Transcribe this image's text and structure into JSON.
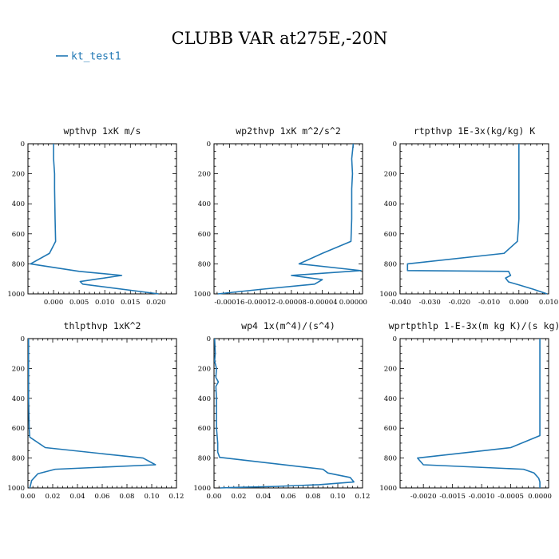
{
  "figure": {
    "title": "CLUBB VAR at275E,-20N",
    "legend": [
      {
        "label": "kt_test1",
        "color": "#1f77b4"
      }
    ]
  },
  "chart_data": [
    {
      "type": "line",
      "title": "wpthvp   1xK m/s",
      "xlim": [
        -0.005,
        0.024
      ],
      "ylim": [
        1000,
        0
      ],
      "xticks": [
        0.0,
        0.005,
        0.01,
        0.015,
        0.02
      ],
      "xtick_labels": [
        "0.000",
        "0.005",
        "0.010",
        "0.015",
        "0.020"
      ],
      "yticks": [
        0,
        200,
        400,
        600,
        800,
        1000
      ],
      "ytick_labels": [
        "0",
        "200",
        "400",
        "600",
        "800",
        "1000"
      ],
      "series": [
        {
          "color": "#1f77b4",
          "x": [
            0.0,
            0.0,
            0.0002,
            0.0002,
            0.0003,
            0.0004,
            -0.0008,
            -0.0045,
            0.005,
            0.0133,
            0.0052,
            0.0057,
            0.0205
          ],
          "y": [
            0,
            100,
            200,
            300,
            500,
            650,
            730,
            800,
            850,
            877,
            918,
            935,
            1000
          ]
        }
      ]
    },
    {
      "type": "line",
      "title": "wp2thvp   1xK m^2/s^2",
      "xlim": [
        -0.00018,
        1.2e-05
      ],
      "ylim": [
        1000,
        0
      ],
      "xticks": [
        -0.00016,
        -0.00012,
        -8e-05,
        -4e-05,
        0.0
      ],
      "xtick_labels": [
        "-0.00016",
        "-0.00012",
        "-0.00008",
        "-0.00004",
        "0.00000"
      ],
      "yticks": [
        0,
        200,
        400,
        600,
        800,
        1000
      ],
      "ytick_labels": [
        "0",
        "200",
        "400",
        "600",
        "800",
        "1000"
      ],
      "series": [
        {
          "color": "#1f77b4",
          "x": [
            0.0,
            -2e-06,
            -1e-06,
            -2e-06,
            -2e-06,
            -3e-06,
            -4e-05,
            -7e-05,
            1e-05,
            -8e-05,
            -4e-05,
            -5e-05,
            -0.00012,
            -0.000175
          ],
          "y": [
            0,
            100,
            200,
            300,
            500,
            650,
            730,
            800,
            845,
            877,
            905,
            935,
            970,
            1000
          ]
        }
      ]
    },
    {
      "type": "line",
      "title": "rtpthvp   1E-3x(kg/kg) K",
      "xlim": [
        -0.04,
        0.01
      ],
      "ylim": [
        1000,
        0
      ],
      "xticks": [
        -0.04,
        -0.03,
        -0.02,
        -0.01,
        0.0,
        0.01
      ],
      "xtick_labels": [
        "-0.040",
        "-0.030",
        "-0.020",
        "-0.010",
        "0.000",
        "0.010"
      ],
      "yticks": [
        0,
        200,
        400,
        600,
        800,
        1000
      ],
      "ytick_labels": [
        "0",
        "200",
        "400",
        "600",
        "800",
        "1000"
      ],
      "series": [
        {
          "color": "#1f77b4",
          "x": [
            0.0,
            0.0,
            0.0,
            0.0,
            -0.0005,
            -0.005,
            -0.0375,
            -0.0375,
            -0.0035,
            -0.0028,
            -0.0045,
            -0.0035,
            0.0,
            0.005,
            0.0095
          ],
          "y": [
            0,
            100,
            300,
            500,
            650,
            730,
            800,
            845,
            850,
            877,
            895,
            920,
            940,
            970,
            1000
          ]
        }
      ]
    },
    {
      "type": "line",
      "title": "thlpthvp   1xK^2",
      "xlim": [
        0.0,
        0.12
      ],
      "ylim": [
        1000,
        0
      ],
      "xticks": [
        0.0,
        0.02,
        0.04,
        0.06,
        0.08,
        0.1,
        0.12
      ],
      "xtick_labels": [
        "0.00",
        "0.02",
        "0.04",
        "0.06",
        "0.08",
        "0.10",
        "0.12"
      ],
      "yticks": [
        0,
        200,
        400,
        600,
        800,
        1000
      ],
      "ytick_labels": [
        "0",
        "200",
        "400",
        "600",
        "800",
        "1000"
      ],
      "series": [
        {
          "color": "#1f77b4",
          "x": [
            0.0005,
            0.0005,
            0.0005,
            0.001,
            0.0015,
            0.014,
            0.093,
            0.103,
            0.022,
            0.008,
            0.003,
            0.0015
          ],
          "y": [
            0,
            200,
            400,
            600,
            660,
            730,
            800,
            845,
            875,
            905,
            950,
            1000
          ]
        }
      ]
    },
    {
      "type": "line",
      "title": "wp4   1x(m^4)/(s^4)",
      "xlim": [
        0.0,
        0.12
      ],
      "ylim": [
        1000,
        0
      ],
      "xticks": [
        0.0,
        0.02,
        0.04,
        0.06,
        0.08,
        0.1,
        0.12
      ],
      "xtick_labels": [
        "0.00",
        "0.02",
        "0.04",
        "0.06",
        "0.08",
        "0.10",
        "0.12"
      ],
      "yticks": [
        0,
        200,
        400,
        600,
        800,
        1000
      ],
      "ytick_labels": [
        "0",
        "200",
        "400",
        "600",
        "800",
        "1000"
      ],
      "series": [
        {
          "color": "#1f77b4",
          "x": [
            0.0005,
            0.001,
            0.0005,
            0.002,
            0.0015,
            0.0035,
            0.0015,
            0.002,
            0.002,
            0.003,
            0.003,
            0.0045,
            0.088,
            0.092,
            0.11,
            0.113,
            0.085,
            0.05,
            0.015,
            0.005
          ],
          "y": [
            0,
            100,
            150,
            200,
            260,
            290,
            320,
            400,
            600,
            700,
            760,
            795,
            875,
            900,
            930,
            960,
            978,
            990,
            997,
            1000
          ]
        }
      ]
    },
    {
      "type": "line",
      "title": "wprtpthlp   1-E-3x(m kg K)/(s kg)",
      "xlim": [
        -0.0024,
        0.00015
      ],
      "ylim": [
        1000,
        0
      ],
      "xticks": [
        -0.002,
        -0.0015,
        -0.001,
        -0.0005,
        0.0
      ],
      "xtick_labels": [
        "-0.0020",
        "-0.0015",
        "-0.0010",
        "-0.0005",
        "0.0000"
      ],
      "yticks": [
        0,
        200,
        400,
        600,
        800,
        1000
      ],
      "ytick_labels": [
        "0",
        "200",
        "400",
        "600",
        "800",
        "1000"
      ],
      "series": [
        {
          "color": "#1f77b4",
          "x": [
            0.0,
            0.0,
            0.0,
            0.0,
            -0.0005,
            -0.0021,
            -0.002,
            -0.00028,
            -0.0001,
            -2e-05,
            0.0,
            0.0
          ],
          "y": [
            0,
            200,
            400,
            650,
            730,
            800,
            845,
            875,
            900,
            935,
            960,
            1000
          ]
        }
      ]
    }
  ]
}
